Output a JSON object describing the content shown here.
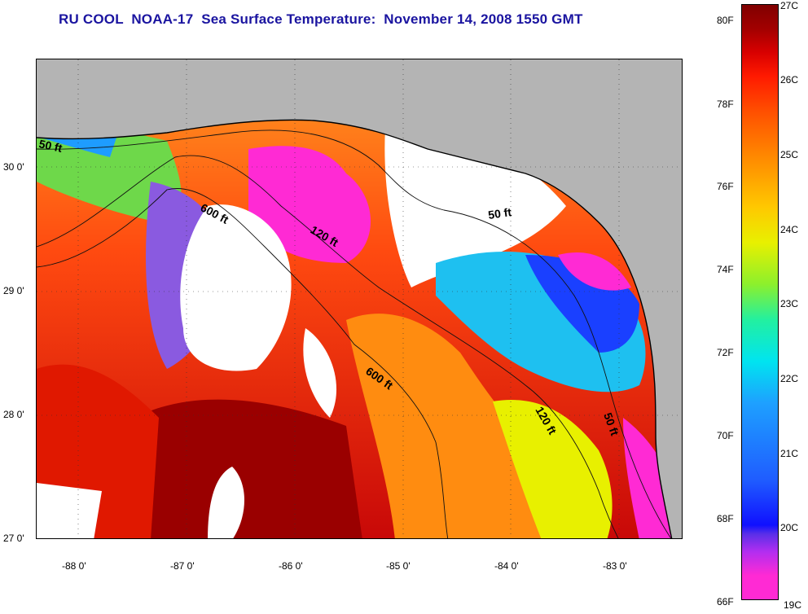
{
  "title": "RU COOL  NOAA-17  Sea Surface Temperature:  November 14, 2008 1550 GMT",
  "lon_ticks": [
    "-88 0'",
    "-87 0'",
    "-86 0'",
    "-85 0'",
    "-84 0'",
    "-83 0'"
  ],
  "lat_ticks": [
    "30 0'",
    "29 0'",
    "28 0'",
    "27 0'"
  ],
  "contour_labels": {
    "shelf_50ft_west": "50 ft",
    "depth_600ft_west": "600 ft",
    "depth_120ft_west": "120 ft",
    "shelf_50ft_east": "50 ft",
    "depth_600ft_south": "600 ft",
    "depth_120ft_east": "120 ft",
    "shelf_50ft_south": "50 ft"
  },
  "colorbar": {
    "fahrenheit": [
      "80F",
      "78F",
      "76F",
      "74F",
      "72F",
      "70F",
      "68F",
      "66F"
    ],
    "celsius": [
      "27C",
      "26C",
      "25C",
      "24C",
      "23C",
      "22C",
      "21C",
      "20C",
      "19C"
    ]
  },
  "colors": {
    "title": "#1a14a0",
    "land": "#b4b4b4",
    "cloud": "#ffffff",
    "warm": "#d01000",
    "cold": "#ff2ad4"
  }
}
